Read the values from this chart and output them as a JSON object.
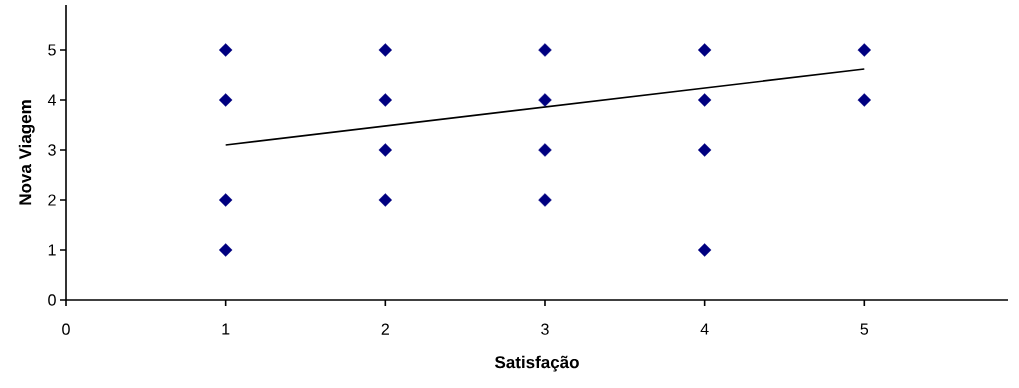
{
  "chart_data": {
    "type": "scatter",
    "xlabel": "Satisfação",
    "ylabel": "Nova Viagem",
    "xlim": [
      0,
      5.9
    ],
    "ylim": [
      0,
      5.9
    ],
    "xticks": [
      0,
      1,
      2,
      3,
      4,
      5
    ],
    "yticks": [
      0,
      1,
      2,
      3,
      4,
      5
    ],
    "grid": false,
    "marker": "diamond",
    "series": [
      {
        "color": "#000080",
        "x": [
          1,
          1,
          1,
          1,
          2,
          2,
          2,
          2,
          3,
          3,
          3,
          3,
          4,
          4,
          4,
          4,
          5,
          5
        ],
        "values": [
          5,
          4,
          2,
          1,
          5,
          4,
          3,
          2,
          5,
          4,
          3,
          2,
          5,
          4,
          3,
          1,
          5,
          4
        ]
      },
      {
        "type": "line",
        "color": "#000000",
        "marker": "none",
        "line_style": "solid",
        "x": [
          1,
          5
        ],
        "values": [
          3.1,
          4.62
        ]
      }
    ]
  }
}
